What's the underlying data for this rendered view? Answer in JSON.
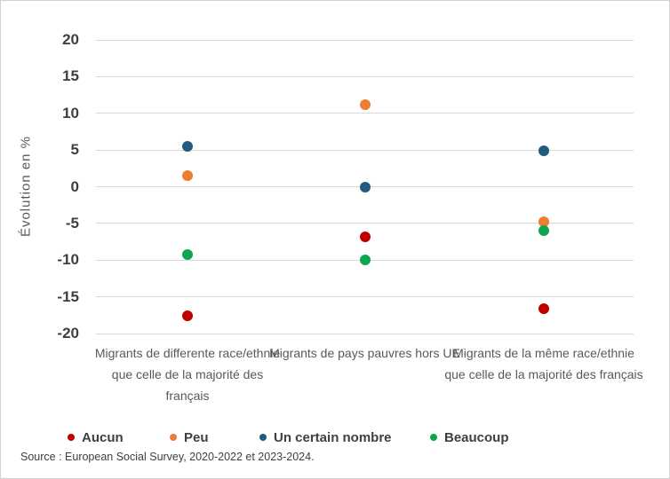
{
  "chart_data": {
    "type": "scatter",
    "title": "",
    "xlabel": "",
    "ylabel": "Évolution en %",
    "ylim": [
      -20,
      20
    ],
    "yticks": [
      20,
      15,
      10,
      5,
      0,
      -5,
      -10,
      -15,
      -20
    ],
    "grid": true,
    "legend_position": "bottom",
    "categories": [
      "Migrants de differente race/ethnie que celle de la majorité des français",
      "Migrants de pays pauvres hors UE",
      "Migrants de la même race/ethnie que celle de la majorité des français"
    ],
    "series": [
      {
        "name": "Aucun",
        "color": "#c00000",
        "values": [
          -17.6,
          -6.8,
          -16.6
        ]
      },
      {
        "name": "Peu",
        "color": "#ed7d31",
        "values": [
          1.5,
          11.2,
          -4.8
        ]
      },
      {
        "name": "Un certain nombre",
        "color": "#1f5c80",
        "values": [
          5.5,
          0,
          4.9
        ]
      },
      {
        "name": "Beaucoup",
        "color": "#0ca64f",
        "values": [
          -9.3,
          -10,
          -6
        ]
      }
    ]
  },
  "source_note": "Source : European Social Survey, 2020-2022 et 2023-2024.",
  "colors": {
    "grid": "#d9d9d9",
    "tick_label": "#3f3f3f",
    "category_label": "#595959",
    "legend_label": "#3f3f3f",
    "frame_border": "#d2d2d2",
    "background": "#ffffff"
  }
}
